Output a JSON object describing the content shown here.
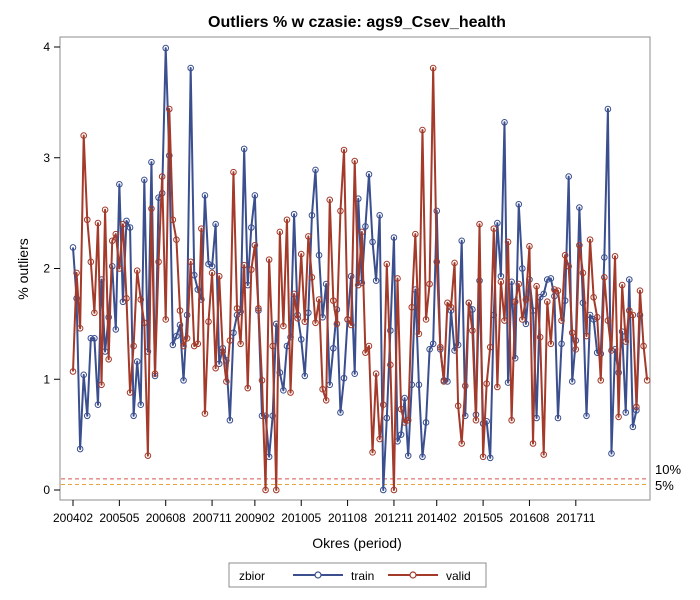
{
  "chart_data": {
    "type": "line",
    "title": "Outliers % w czasie: ags9_Csev_health",
    "xlabel": "Okres (period)",
    "ylabel": "% outliers",
    "ylim": [
      0,
      4
    ],
    "yticks": [
      "0",
      "1",
      "2",
      "3",
      "4"
    ],
    "xticks": [
      {
        "label": "200402",
        "index": 0
      },
      {
        "label": "200505",
        "index": 13
      },
      {
        "label": "200608",
        "index": 26
      },
      {
        "label": "200711",
        "index": 39
      },
      {
        "label": "200902",
        "index": 51
      },
      {
        "label": "201005",
        "index": 64
      },
      {
        "label": "201108",
        "index": 77
      },
      {
        "label": "201211",
        "index": 90
      },
      {
        "label": "201402",
        "index": 102
      },
      {
        "label": "201505",
        "index": 115
      },
      {
        "label": "201608",
        "index": 128
      },
      {
        "label": "201711",
        "index": 141
      }
    ],
    "n_periods": 160,
    "reference_lines": [
      {
        "label": "10%",
        "value": 0.1,
        "color": "#d9534f"
      },
      {
        "label": "5%",
        "value": 0.05,
        "color": "#e6a23c"
      }
    ],
    "legend": {
      "title": "zbior",
      "placement": "bottom-center"
    },
    "series": [
      {
        "name": "train",
        "color": "#3b4f8f",
        "values": [
          2.19,
          1.73,
          0.37,
          1.04,
          0.67,
          1.37,
          1.37,
          0.77,
          1.9,
          1.25,
          1.56,
          2.02,
          1.45,
          2.76,
          1.7,
          2.43,
          2.37,
          0.67,
          1.16,
          0.77,
          2.8,
          1.25,
          2.96,
          1.03,
          2.64,
          2.68,
          3.99,
          3.02,
          1.31,
          1.39,
          1.49,
          0.99,
          1.58,
          3.81,
          1.94,
          1.81,
          1.72,
          2.66,
          2.04,
          2.02,
          2.4,
          1.14,
          1.28,
          1.17,
          0.63,
          1.42,
          1.58,
          1.61,
          3.08,
          1.85,
          2.37,
          2.66,
          1.62,
          0.67,
          0.67,
          0.3,
          0.67,
          1.5,
          1.06,
          0.9,
          1.3,
          1.38,
          2.49,
          1.58,
          1.36,
          1.03,
          1.6,
          2.48,
          2.89,
          2.12,
          1.56,
          1.86,
          0.95,
          1.28,
          1.63,
          0.7,
          1.01,
          1.54,
          1.93,
          1.05,
          2.63,
          1.87,
          2.38,
          2.85,
          2.24,
          1.89,
          2.48,
          0.0,
          0.65,
          1.44,
          2.28,
          0.44,
          0.5,
          0.83,
          0.31,
          0.95,
          1.81,
          0.95,
          0.3,
          0.61,
          1.27,
          1.32,
          2.52,
          1.27,
          0.99,
          0.98,
          1.62,
          1.26,
          1.31,
          2.25,
          0.67,
          1.69,
          1.63,
          0.68,
          1.89,
          0.6,
          0.62,
          0.29,
          1.58,
          2.41,
          1.93,
          3.32,
          0.97,
          1.88,
          1.19,
          2.58,
          2.0,
          1.5,
          1.9,
          1.62,
          0.65,
          1.74,
          1.77,
          1.9,
          1.91,
          1.75,
          0.65,
          1.32,
          1.71,
          2.83,
          0.98,
          1.35,
          2.55,
          1.69,
          0.67,
          1.58,
          1.54,
          1.24,
          1.23,
          2.1,
          3.44,
          0.33,
          1.27,
          1.06,
          1.43,
          0.7,
          1.9,
          0.57,
          0.72,
          1.58
        ],
        "point_name": "train-point"
      },
      {
        "name": "valid",
        "color": "#a33a2a",
        "values": [
          1.07,
          1.96,
          1.46,
          3.2,
          2.44,
          2.06,
          1.6,
          2.41,
          0.95,
          2.53,
          1.18,
          2.25,
          2.31,
          2.0,
          2.4,
          1.73,
          0.88,
          1.3,
          1.98,
          1.72,
          1.51,
          0.31,
          2.54,
          1.05,
          2.06,
          2.83,
          1.54,
          3.44,
          2.44,
          2.26,
          1.62,
          1.3,
          1.37,
          2.06,
          1.3,
          1.32,
          2.36,
          0.69,
          1.52,
          1.96,
          1.1,
          1.93,
          1.25,
          0.98,
          1.35,
          2.87,
          1.64,
          1.32,
          2.03,
          0.92,
          1.99,
          2.21,
          1.64,
          0.99,
          0.0,
          2.08,
          1.3,
          0.0,
          2.33,
          1.48,
          2.44,
          0.88,
          1.77,
          1.55,
          2.13,
          1.52,
          2.29,
          1.92,
          1.51,
          1.72,
          0.91,
          0.81,
          2.62,
          1.71,
          1.5,
          2.52,
          3.07,
          1.54,
          1.49,
          2.97,
          1.85,
          2.33,
          1.24,
          1.3,
          0.34,
          1.05,
          0.46,
          0.77,
          2.04,
          1.13,
          0.0,
          1.91,
          0.73,
          0.61,
          0.63,
          1.65,
          2.31,
          1.41,
          3.25,
          1.54,
          1.86,
          3.81,
          2.06,
          1.29,
          0.98,
          1.69,
          1.65,
          2.05,
          0.76,
          0.42,
          0.94,
          1.69,
          1.44,
          0.63,
          2.4,
          0.3,
          0.96,
          1.29,
          2.36,
          0.93,
          1.88,
          1.53,
          2.24,
          0.63,
          1.7,
          1.86,
          1.54,
          1.72,
          2.2,
          0.42,
          1.84,
          1.38,
          0.32,
          1.7,
          1.32,
          1.81,
          1.8,
          1.53,
          2.12,
          2.02,
          1.42,
          1.27,
          2.21,
          1.96,
          1.39,
          2.26,
          1.74,
          1.56,
          0.99,
          1.92,
          1.53,
          1.26,
          2.11,
          0.66,
          1.85,
          1.34,
          1.62,
          1.58,
          0.75,
          1.8,
          1.3,
          0.99
        ],
        "point_name": "valid-point"
      }
    ]
  }
}
